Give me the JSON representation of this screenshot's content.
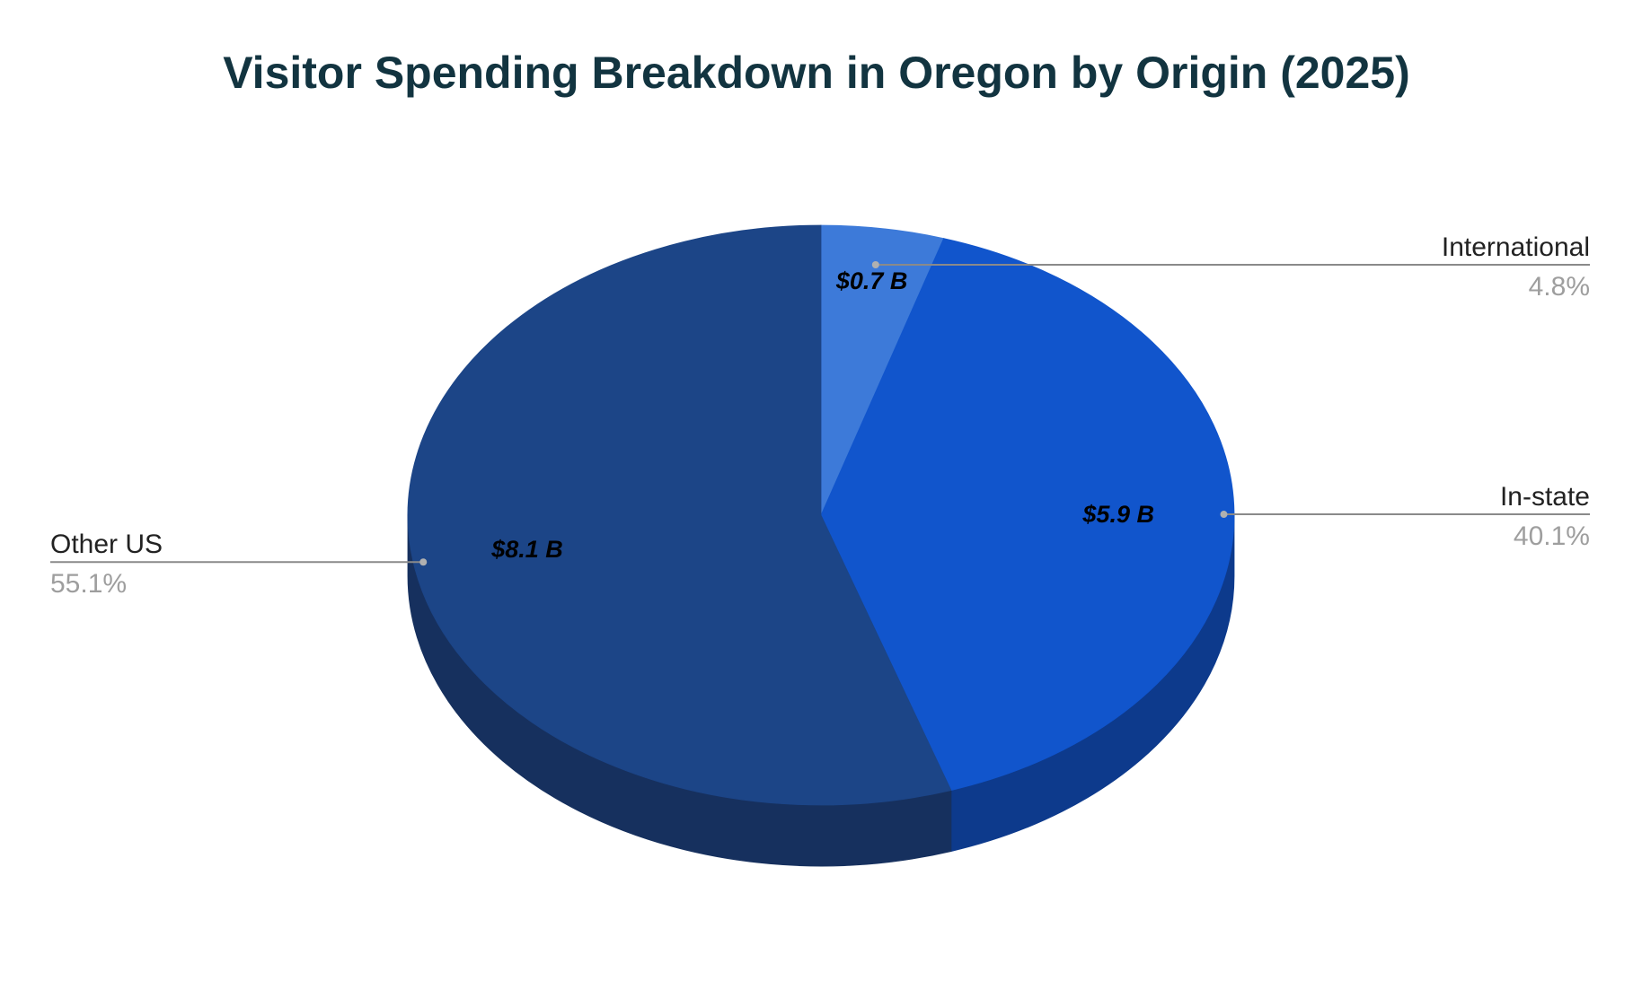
{
  "chart_data": {
    "type": "pie",
    "title": "Visitor Spending Breakdown in Oregon by Origin (2025)",
    "style": "3d",
    "slices": [
      {
        "name": "International",
        "value": 0.7,
        "value_label": "$0.7 B",
        "percent": 4.8,
        "percent_label": "4.8%",
        "color": "#3d7ad9",
        "side_color": "#2a56a1"
      },
      {
        "name": "In-state",
        "value": 5.9,
        "value_label": "$5.9 B",
        "percent": 40.1,
        "percent_label": "40.1%",
        "color": "#1155cc",
        "side_color": "#0d3a8c"
      },
      {
        "name": "Other US",
        "value": 8.1,
        "value_label": "$8.1 B",
        "percent": 55.1,
        "percent_label": "55.1%",
        "color": "#1c4587",
        "side_color": "#16305e"
      }
    ],
    "start_angle_deg": 0,
    "direction": "clockwise",
    "legend": "none",
    "value_labels": "inside",
    "percent_labels": "outside-with-leader-lines"
  },
  "colors": {
    "title": "#123440",
    "value_label": "#000000",
    "leader_name": "#222222",
    "leader_pct": "#9e9e9e",
    "leader_line": "#8a8a8a"
  }
}
